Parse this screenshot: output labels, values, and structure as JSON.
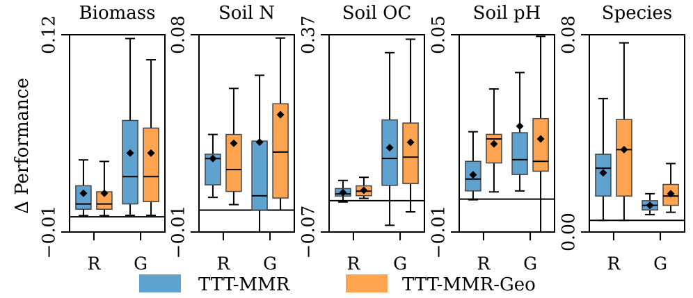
{
  "chart_data": {
    "type": "boxplot",
    "ylabel": "Δ Performance",
    "legend": {
      "placement": "bottom-center",
      "entries": [
        {
          "name": "TTT-MMR",
          "color": "#5fa1cf"
        },
        {
          "name": "TTT-MMR-Geo",
          "color": "#ffa552"
        }
      ]
    },
    "panels": [
      {
        "title": "Biomass",
        "categories": [
          "R",
          "G"
        ],
        "ylim": [
          -0.01,
          0.12
        ],
        "ytick_labels": [
          "−0.01",
          "0.12"
        ],
        "reference_line": 0.0,
        "grid_lines": [],
        "boxes": [
          {
            "category": "R",
            "series": "TTT-MMR",
            "whislo": 0.0008,
            "q1": 0.005,
            "median": 0.0085,
            "q3": 0.0205,
            "whishi": 0.0375,
            "mean": 0.0155
          },
          {
            "category": "R",
            "series": "TTT-MMR-Geo",
            "whislo": 0.0008,
            "q1": 0.005,
            "median": 0.0085,
            "q3": 0.0165,
            "whishi": 0.0365,
            "mean": 0.0155
          },
          {
            "category": "G",
            "series": "TTT-MMR",
            "whislo": 0.001,
            "q1": 0.0085,
            "median": 0.0265,
            "q3": 0.0635,
            "whishi": 0.1175,
            "mean": 0.042
          },
          {
            "category": "G",
            "series": "TTT-MMR-Geo",
            "whislo": 0.001,
            "q1": 0.01,
            "median": 0.0265,
            "q3": 0.0585,
            "whishi": 0.1035,
            "mean": 0.042
          }
        ]
      },
      {
        "title": "Soil N",
        "categories": [
          "R",
          "G"
        ],
        "ylim": [
          -0.01,
          0.08
        ],
        "ytick_labels": [
          "−0.01",
          "0.08"
        ],
        "reference_line": 0.0,
        "grid_lines": [
          -0.01
        ],
        "boxes": [
          {
            "category": "R",
            "series": "TTT-MMR",
            "whislo": 0.0058,
            "q1": 0.0115,
            "median": 0.0235,
            "q3": 0.0255,
            "whishi": 0.0345,
            "mean": 0.0235
          },
          {
            "category": "R",
            "series": "TTT-MMR-Geo",
            "whislo": 0.0025,
            "q1": 0.0085,
            "median": 0.0185,
            "q3": 0.0345,
            "whishi": 0.0555,
            "mean": 0.0305
          },
          {
            "category": "G",
            "series": "TTT-MMR",
            "whislo": -0.01,
            "q1": 0.0,
            "median": 0.0065,
            "q3": 0.0315,
            "whishi": 0.0615,
            "mean": 0.031
          },
          {
            "category": "G",
            "series": "TTT-MMR-Geo",
            "whislo": 0.0,
            "q1": 0.0055,
            "median": 0.0265,
            "q3": 0.0485,
            "whishi": 0.0785,
            "mean": 0.0435
          }
        ]
      },
      {
        "title": "Soil OC",
        "categories": [
          "R",
          "G"
        ],
        "ylim": [
          -0.07,
          0.37
        ],
        "ytick_labels": [
          "−0.07",
          "0.37"
        ],
        "reference_line": 0.0,
        "grid_lines": [
          -0.07
        ],
        "boxes": [
          {
            "category": "R",
            "series": "TTT-MMR",
            "whislo": -0.003,
            "q1": 0.01,
            "median": 0.015,
            "q3": 0.027,
            "whishi": 0.045,
            "mean": 0.018
          },
          {
            "category": "R",
            "series": "TTT-MMR-Geo",
            "whislo": 0.005,
            "q1": 0.011,
            "median": 0.021,
            "q3": 0.033,
            "whishi": 0.052,
            "mean": 0.023
          },
          {
            "category": "G",
            "series": "TTT-MMR",
            "whislo": -0.055,
            "q1": 0.034,
            "median": 0.094,
            "q3": 0.18,
            "whishi": 0.33,
            "mean": 0.118
          },
          {
            "category": "G",
            "series": "TTT-MMR-Geo",
            "whislo": -0.025,
            "q1": 0.038,
            "median": 0.097,
            "q3": 0.173,
            "whishi": 0.36,
            "mean": 0.13
          }
        ]
      },
      {
        "title": "Soil pH",
        "categories": [
          "R",
          "G"
        ],
        "ylim": [
          -0.01,
          0.05
        ],
        "ytick_labels": [
          "−0.01",
          "0.05"
        ],
        "reference_line": 0.0,
        "grid_lines": [
          -0.01,
          0.05
        ],
        "boxes": [
          {
            "category": "R",
            "series": "TTT-MMR",
            "whislo": -0.0002,
            "q1": 0.0025,
            "median": 0.0061,
            "q3": 0.0115,
            "whishi": 0.0205,
            "mean": 0.0074
          },
          {
            "category": "R",
            "series": "TTT-MMR-Geo",
            "whislo": 0.0022,
            "q1": 0.011,
            "median": 0.0183,
            "q3": 0.0197,
            "whishi": 0.0335,
            "mean": 0.0168
          },
          {
            "category": "G",
            "series": "TTT-MMR",
            "whislo": 0.0025,
            "q1": 0.0075,
            "median": 0.012,
            "q3": 0.0202,
            "whishi": 0.0385,
            "mean": 0.0222
          },
          {
            "category": "G",
            "series": "TTT-MMR-Geo",
            "whislo": -0.01,
            "q1": 0.0085,
            "median": 0.0115,
            "q3": 0.0245,
            "whishi": 0.0495,
            "mean": 0.0183
          }
        ]
      },
      {
        "title": "Species",
        "categories": [
          "R",
          "G"
        ],
        "ylim": [
          -0.005,
          0.08
        ],
        "ytick_labels": [
          "0.00",
          "0.08"
        ],
        "reference_line": 0.0,
        "grid_lines": [],
        "boxes": [
          {
            "category": "R",
            "series": "TTT-MMR",
            "whislo": 0.0,
            "q1": 0.0105,
            "median": 0.0225,
            "q3": 0.0285,
            "whishi": 0.0525,
            "mean": 0.0205
          },
          {
            "category": "R",
            "series": "TTT-MMR-Geo",
            "whislo": 0.0,
            "q1": 0.0105,
            "median": 0.0305,
            "q3": 0.0435,
            "whishi": 0.0765,
            "mean": 0.0305
          },
          {
            "category": "G",
            "series": "TTT-MMR",
            "whislo": 0.0025,
            "q1": 0.0045,
            "median": 0.0065,
            "q3": 0.0085,
            "whishi": 0.0115,
            "mean": 0.0065
          },
          {
            "category": "G",
            "series": "TTT-MMR-Geo",
            "whislo": 0.0035,
            "q1": 0.0065,
            "median": 0.0105,
            "q3": 0.0155,
            "whishi": 0.0245,
            "mean": 0.0115
          }
        ]
      }
    ]
  }
}
